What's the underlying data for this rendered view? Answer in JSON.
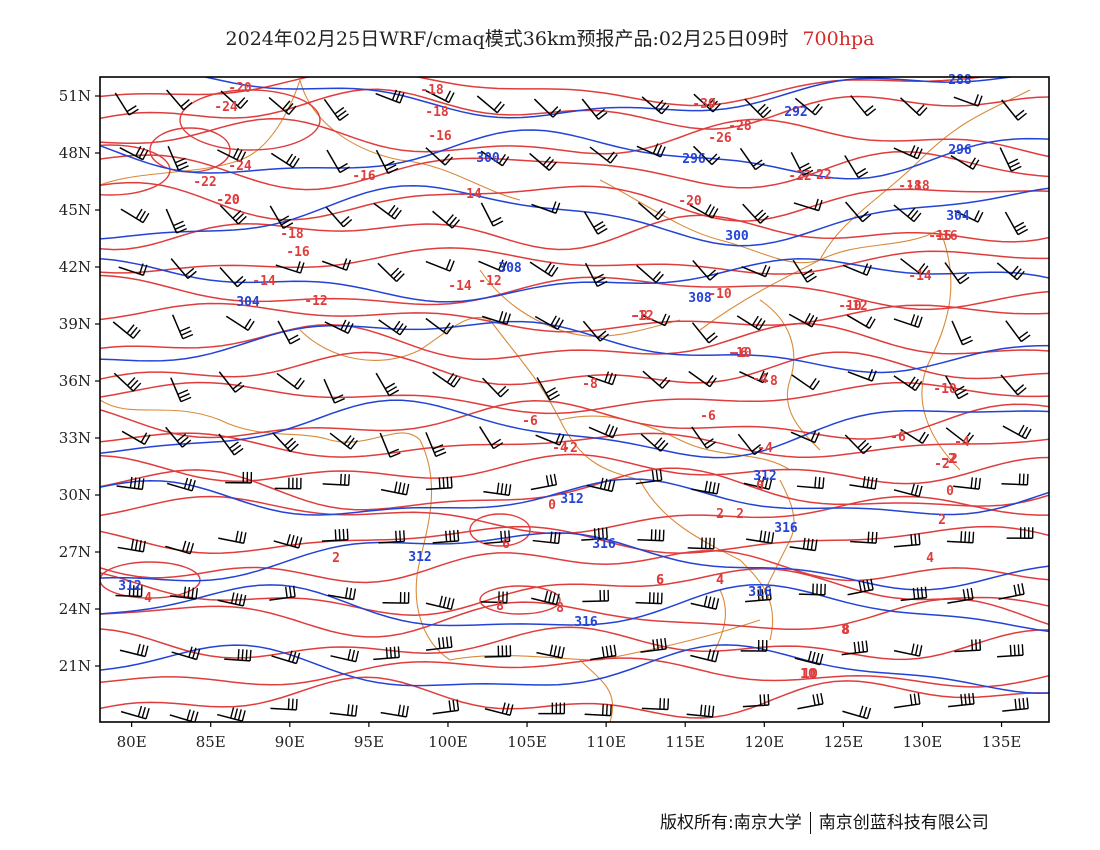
{
  "header": {
    "title": "2024年02月25日WRF/cmaq模式36km预报产品:02月25日09时",
    "level": "700hpa",
    "level_color": "#d42a2a"
  },
  "footer": {
    "copyright": "版权所有:南京大学",
    "company": "南京创蓝科技有限公司"
  },
  "map": {
    "lat_ticks": [
      "51N",
      "48N",
      "45N",
      "42N",
      "39N",
      "36N",
      "33N",
      "30N",
      "27N",
      "24N",
      "21N"
    ],
    "lon_ticks": [
      "80E",
      "85E",
      "90E",
      "95E",
      "100E",
      "105E",
      "110E",
      "115E",
      "120E",
      "125E",
      "130E",
      "135E"
    ],
    "colors": {
      "temperature": "#e03c3c",
      "height": "#2243d6",
      "boundary": "#d98a3a",
      "wind": "#000000",
      "frame": "#000000"
    }
  },
  "temperature_labels": [
    "-20",
    "-18",
    "-16",
    "-22",
    "-24",
    "-26",
    "-28",
    "-30",
    "-22",
    "-20",
    "-18",
    "-16",
    "-14",
    "-12",
    "-10",
    "-8",
    "-6",
    "-4",
    "-2",
    "0",
    "2",
    "4",
    "6",
    "8",
    "10",
    "-20",
    "-18",
    "-16",
    "-14",
    "-12",
    "-10",
    "-8",
    "-6",
    "-4",
    "-2",
    "0",
    "2",
    "4",
    "6",
    "8",
    "-24",
    "-22",
    "-20",
    "-18",
    "-16",
    "-14",
    "-12",
    "-10",
    "-6",
    "-4",
    "-2",
    "0",
    "2",
    "4",
    "6",
    "8",
    "-18",
    "-16",
    "-14",
    "-12",
    "-10",
    "-8",
    "-6",
    "-4",
    "-2",
    "0",
    "2",
    "4",
    "6",
    "8",
    "10"
  ],
  "height_labels": [
    "288",
    "292",
    "296",
    "296",
    "300",
    "300",
    "304",
    "304",
    "308",
    "308",
    "312",
    "312",
    "312",
    "312",
    "316",
    "316",
    "316",
    "316"
  ]
}
